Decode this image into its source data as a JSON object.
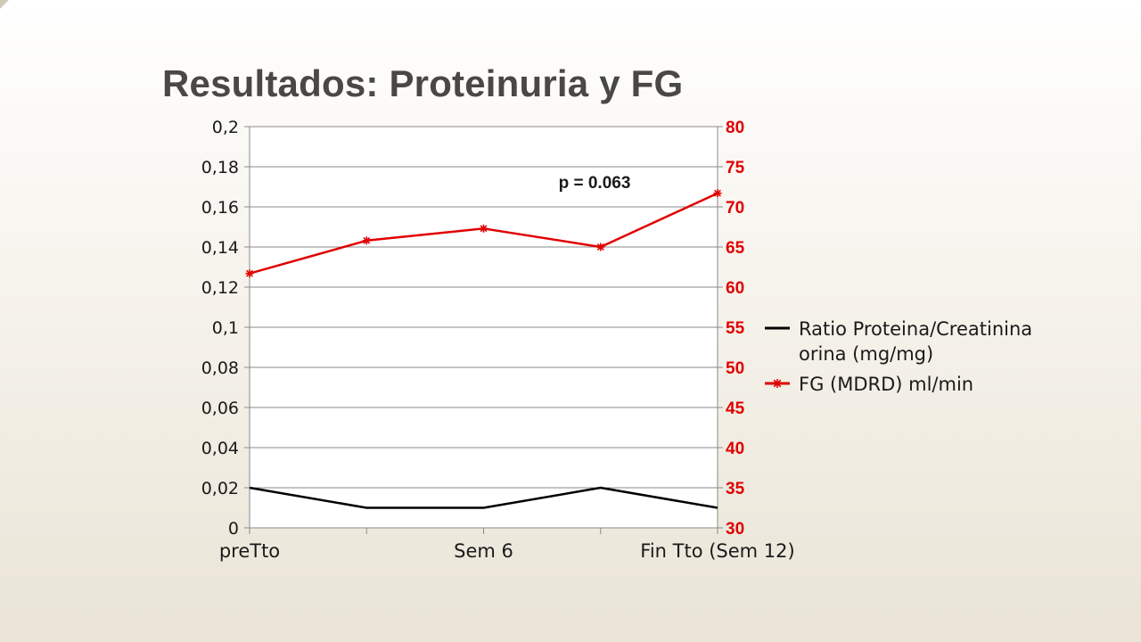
{
  "title": "Resultados: Proteinuria y FG",
  "chart_data": {
    "type": "line",
    "categories": [
      "preTto",
      "",
      "Sem 6",
      "",
      "Fin Tto (Sem 12)"
    ],
    "y_left": {
      "ylim": [
        0,
        0.2
      ],
      "tick_labels": [
        "0",
        "0,02",
        "0,04",
        "0,06",
        "0,08",
        "0,1",
        "0,12",
        "0,14",
        "0,16",
        "0,18",
        "0,2"
      ]
    },
    "y_right": {
      "ylim": [
        30,
        80
      ],
      "tick_labels": [
        "30",
        "35",
        "40",
        "45",
        "50",
        "55",
        "60",
        "65",
        "70",
        "75",
        "80"
      ],
      "color": "#e00000"
    },
    "grid": true,
    "legend_position": "right",
    "series": [
      {
        "name": "Ratio Proteina/Creatinina orina (mg/mg)",
        "name_lines": [
          "Ratio Proteina/Creatinina",
          "orina (mg/mg)"
        ],
        "axis": "left",
        "color": "#000000",
        "values": [
          0.02,
          0.01,
          0.01,
          0.02,
          0.01
        ]
      },
      {
        "name": "FG (MDRD) ml/min",
        "name_lines": [
          "FG (MDRD) ml/min"
        ],
        "axis": "right",
        "color": "#e00000",
        "marker": "asterisk",
        "values": [
          61.7,
          65.8,
          67.3,
          65.0,
          71.7
        ]
      }
    ],
    "annotations": [
      {
        "text": "p = 0.063"
      }
    ]
  }
}
